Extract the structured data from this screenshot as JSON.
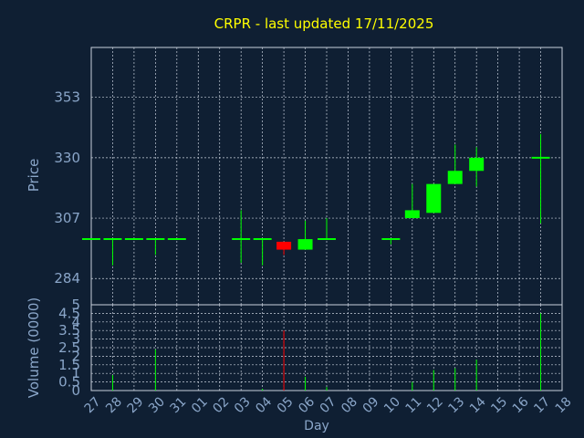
{
  "title": "CRPR - last updated 17/11/2025",
  "colors": {
    "background": "#0f1f33",
    "frame": "#c8d0dc",
    "grid": "#c8d0dc",
    "title": "#ffff00",
    "axis_text": "#8aa6c9",
    "up": "#00ff00",
    "down": "#ff0000",
    "doji": "#00ff00"
  },
  "chart_data": [
    {
      "type": "candlestick",
      "ylabel": "Price",
      "yticks": [
        284,
        307,
        330,
        353
      ],
      "ylim": [
        274,
        372
      ],
      "grid": true,
      "x": [
        "27",
        "28",
        "29",
        "30",
        "31",
        "01",
        "02",
        "03",
        "04",
        "05",
        "06",
        "07",
        "08",
        "09",
        "10",
        "11",
        "12",
        "13",
        "14",
        "15",
        "16",
        "17",
        "18"
      ],
      "candles": [
        {
          "day": "27",
          "open": 299,
          "high": 299,
          "low": 299,
          "close": 299
        },
        {
          "day": "28",
          "open": 299,
          "high": 299,
          "low": 289,
          "close": 299
        },
        {
          "day": "29",
          "open": 299,
          "high": 299,
          "low": 299,
          "close": 299
        },
        {
          "day": "30",
          "open": 299,
          "high": 299,
          "low": 293,
          "close": 299
        },
        {
          "day": "31",
          "open": 299,
          "high": 299,
          "low": 299,
          "close": 299
        },
        {
          "day": "03",
          "open": 299,
          "high": 310,
          "low": 290,
          "close": 299
        },
        {
          "day": "04",
          "open": 299,
          "high": 299,
          "low": 289,
          "close": 299
        },
        {
          "day": "05",
          "open": 298,
          "high": 298,
          "low": 293,
          "close": 295
        },
        {
          "day": "06",
          "open": 295,
          "high": 306,
          "low": 295,
          "close": 299
        },
        {
          "day": "07",
          "open": 299,
          "high": 307,
          "low": 299,
          "close": 299
        },
        {
          "day": "10",
          "open": 299,
          "high": 299,
          "low": 297,
          "close": 299
        },
        {
          "day": "11",
          "open": 307,
          "high": 320,
          "low": 307,
          "close": 310
        },
        {
          "day": "12",
          "open": 309,
          "high": 320,
          "low": 309,
          "close": 320
        },
        {
          "day": "13",
          "open": 320,
          "high": 335,
          "low": 320,
          "close": 325
        },
        {
          "day": "14",
          "open": 325,
          "high": 334,
          "low": 319,
          "close": 330
        },
        {
          "day": "17",
          "open": 330,
          "high": 339,
          "low": 305,
          "close": 330
        }
      ]
    },
    {
      "type": "bar",
      "ylabel": "Volume (0000)",
      "xlabel": "Day",
      "ylim": [
        0,
        5
      ],
      "yticks": [
        0,
        0.5,
        1,
        1.5,
        2,
        2.5,
        3,
        3.5,
        4,
        4.5,
        5
      ],
      "ytick_labels": [
        "0",
        "0.5",
        "1",
        "1.5",
        "2",
        "2.5",
        "3",
        "3.5",
        "4",
        "4.5",
        "5"
      ],
      "bars": [
        {
          "day": "28",
          "value": 0.9,
          "direction": "up"
        },
        {
          "day": "30",
          "value": 2.4,
          "direction": "up"
        },
        {
          "day": "04",
          "value": 0.1,
          "direction": "up"
        },
        {
          "day": "05",
          "value": 3.5,
          "direction": "down"
        },
        {
          "day": "06",
          "value": 0.8,
          "direction": "up"
        },
        {
          "day": "07",
          "value": 0.2,
          "direction": "up"
        },
        {
          "day": "11",
          "value": 0.5,
          "direction": "up"
        },
        {
          "day": "12",
          "value": 1.2,
          "direction": "up"
        },
        {
          "day": "13",
          "value": 1.3,
          "direction": "up"
        },
        {
          "day": "14",
          "value": 1.8,
          "direction": "up"
        },
        {
          "day": "17",
          "value": 4.5,
          "direction": "up"
        }
      ]
    }
  ]
}
